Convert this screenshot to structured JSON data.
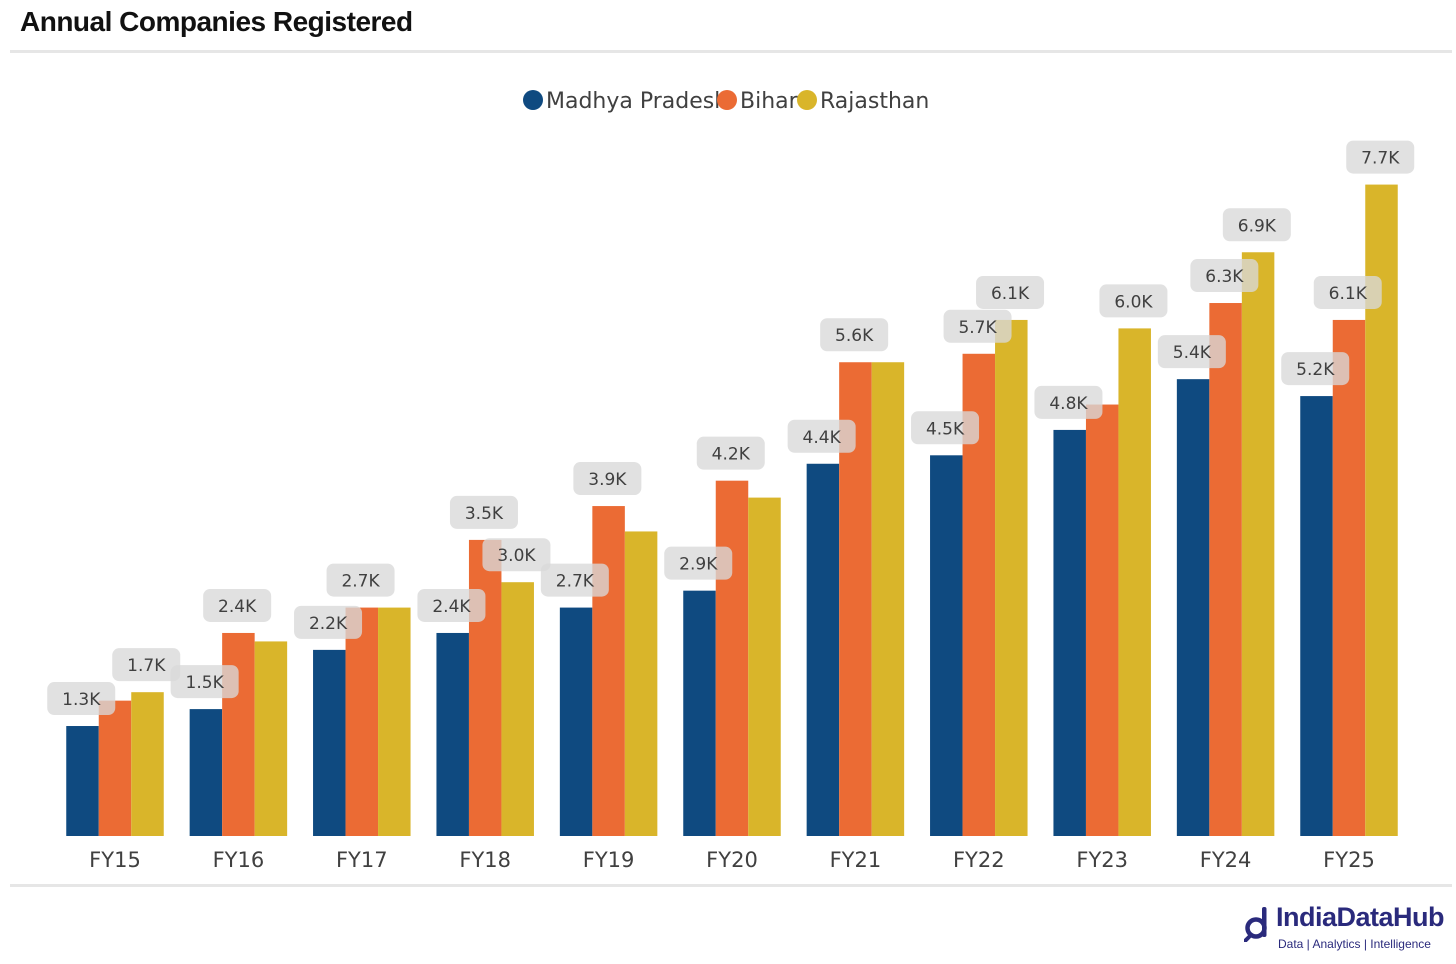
{
  "header": {
    "title": "Annual Companies Registered"
  },
  "brand": {
    "name": "IndiaDataHub",
    "tagline": "Data | Analytics | Intelligence"
  },
  "colors": {
    "madhya_pradesh": "#0f4a80",
    "bihar": "#eb6b34",
    "rajasthan": "#d9b52a",
    "label_bg": "#d8d8d8"
  },
  "chart_data": {
    "type": "bar",
    "title": "Annual Companies Registered",
    "categories": [
      "FY15",
      "FY16",
      "FY17",
      "FY18",
      "FY19",
      "FY20",
      "FY21",
      "FY22",
      "FY23",
      "FY24",
      "FY25"
    ],
    "series": [
      {
        "name": "Madhya Pradesh",
        "values": [
          1.3,
          1.5,
          2.2,
          2.4,
          2.7,
          2.9,
          4.4,
          4.5,
          4.8,
          5.4,
          5.2
        ],
        "labels": [
          "1.3K",
          "1.5K",
          "2.2K",
          "2.4K",
          "2.7K",
          "2.9K",
          "4.4K",
          "4.5K",
          "4.8K",
          "5.4K",
          "5.2K"
        ]
      },
      {
        "name": "Bihar",
        "values": [
          1.6,
          2.4,
          2.7,
          3.5,
          3.9,
          4.2,
          5.6,
          5.7,
          5.1,
          6.3,
          6.1
        ],
        "labels": [
          "",
          "2.4K",
          "2.7K",
          "3.5K",
          "3.9K",
          "4.2K",
          "5.6K",
          "5.7K",
          "",
          "6.3K",
          "6.1K"
        ]
      },
      {
        "name": "Rajasthan",
        "values": [
          1.7,
          2.3,
          2.7,
          3.0,
          3.6,
          4.0,
          5.6,
          6.1,
          6.0,
          6.9,
          7.7
        ],
        "labels": [
          "1.7K",
          "",
          "",
          "3.0K",
          "",
          "",
          "",
          "6.1K",
          "6.0K",
          "6.9K",
          "7.7K"
        ]
      }
    ],
    "unit": "K",
    "ylim": [
      0,
      8
    ],
    "grid": false,
    "legend": "top-center"
  }
}
